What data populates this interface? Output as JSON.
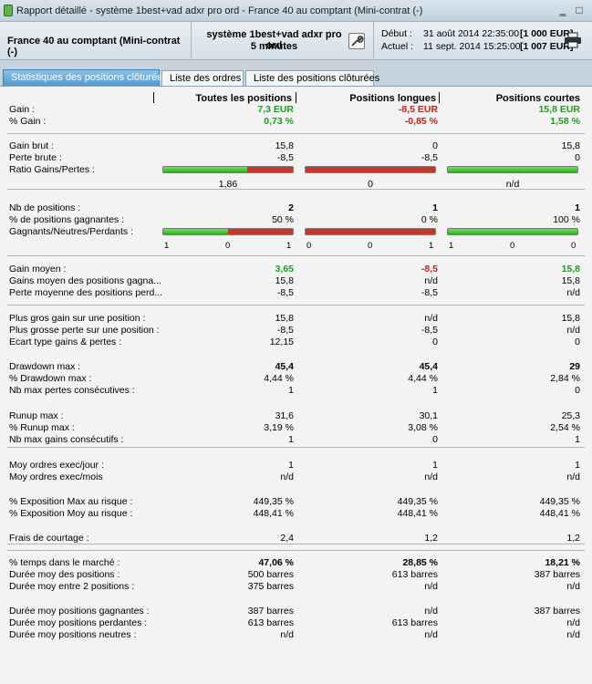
{
  "window": {
    "title": "Rapport détaillé - système 1best+vad adxr pro ord - France 40 au comptant (Mini-contrat  (-)"
  },
  "header": {
    "instrument": "France 40 au comptant (Mini-contrat  (-)",
    "system_line1": "système 1best+vad adxr pro ord",
    "system_line2": "5 minutes",
    "debut_label": "Début :",
    "debut_date": "31 août 2014 22:35:00",
    "debut_capital": "[1 000 EUR]",
    "actuel_label": "Actuel :",
    "actuel_date": "11 sept. 2014 15:25:00",
    "actuel_capital": "[1 007 EUR]"
  },
  "tabs": [
    {
      "label": "Statistiques des positions clôturées",
      "active": true
    },
    {
      "label": "Liste des ordres",
      "active": false
    },
    {
      "label": "Liste des positions clôturées",
      "active": false
    }
  ],
  "columns": [
    "Toutes les positions",
    "Positions longues",
    "Positions courtes"
  ],
  "rows": [
    {
      "label": "Gain :",
      "v": [
        "7,3 EUR",
        "-8,5 EUR",
        "15,8 EUR"
      ]
    },
    {
      "label": "% Gain :",
      "v": [
        "0,73 %",
        "-0,85 %",
        "1,58 %"
      ]
    },
    {
      "label": "Gain brut :",
      "v": [
        "15,8",
        "0",
        "15,8"
      ]
    },
    {
      "label": "Perte brute :",
      "v": [
        "-8,5",
        "-8,5",
        "0"
      ]
    },
    {
      "label": "Ratio Gains/Pertes :",
      "v": [
        "1,86",
        "0",
        "n/d"
      ]
    },
    {
      "label": "Nb de positions :",
      "v": [
        "2",
        "1",
        "1"
      ]
    },
    {
      "label": "% de positions gagnantes :",
      "v": [
        "50 %",
        "0 %",
        "100 %"
      ]
    },
    {
      "label": "Gagnants/Neutres/Perdants :",
      "v": []
    },
    {
      "label": "Gain moyen :",
      "v": [
        "3,65",
        "-8,5",
        "15,8"
      ]
    },
    {
      "label": "Gains moyen des positions gagna...",
      "v": [
        "15,8",
        "n/d",
        "15,8"
      ]
    },
    {
      "label": "Perte moyenne des positions perd...",
      "v": [
        "-8,5",
        "-8,5",
        "n/d"
      ]
    },
    {
      "label": "Plus gros gain sur une position :",
      "v": [
        "15,8",
        "n/d",
        "15,8"
      ]
    },
    {
      "label": "Plus grosse perte sur une position :",
      "v": [
        "-8,5",
        "-8,5",
        "n/d"
      ]
    },
    {
      "label": "Ecart type gains & pertes :",
      "v": [
        "12,15",
        "0",
        "0"
      ]
    },
    {
      "label": "Drawdown max :",
      "v": [
        "45,4",
        "45,4",
        "29"
      ]
    },
    {
      "label": "% Drawdown max :",
      "v": [
        "4,44 %",
        "4,44 %",
        "2,84 %"
      ]
    },
    {
      "label": "Nb max pertes consécutives :",
      "v": [
        "1",
        "1",
        "0"
      ]
    },
    {
      "label": "Runup max :",
      "v": [
        "31,6",
        "30,1",
        "25,3"
      ]
    },
    {
      "label": "% Runup max :",
      "v": [
        "3,19 %",
        "3,08 %",
        "2,54 %"
      ]
    },
    {
      "label": "Nb max gains consécutifs :",
      "v": [
        "1",
        "0",
        "1"
      ]
    },
    {
      "label": "Moy ordres exec/jour :",
      "v": [
        "1",
        "1",
        "1"
      ]
    },
    {
      "label": "Moy ordres exec/mois",
      "v": [
        "n/d",
        "n/d",
        "n/d"
      ]
    },
    {
      "label": "% Exposition Max au risque :",
      "v": [
        "449,35 %",
        "449,35 %",
        "449,35 %"
      ]
    },
    {
      "label": "% Exposition Moy au risque :",
      "v": [
        "448,41 %",
        "448,41 %",
        "448,41 %"
      ]
    },
    {
      "label": "Frais de courtage :",
      "v": [
        "2,4",
        "1,2",
        "1,2"
      ]
    },
    {
      "label": "% temps dans le marché :",
      "v": [
        "47,06 %",
        "28,85 %",
        "18,21 %"
      ]
    },
    {
      "label": "Durée moy des positions :",
      "v": [
        "500 barres",
        "613 barres",
        "387 barres"
      ]
    },
    {
      "label": "Durée moy entre 2 positions :",
      "v": [
        "375 barres",
        "n/d",
        "n/d"
      ]
    },
    {
      "label": "Durée moy positions gagnantes :",
      "v": [
        "387 barres",
        "n/d",
        "387 barres"
      ]
    },
    {
      "label": "Durée moy positions perdantes :",
      "v": [
        "613 barres",
        "613 barres",
        "n/d"
      ]
    },
    {
      "label": "Durée moy positions neutres :",
      "v": [
        "n/d",
        "n/d",
        "n/d"
      ]
    }
  ],
  "ratio_bars": [
    {
      "gain_fraction": 0.65
    },
    {
      "gain_fraction": 0.0
    },
    {
      "gain_fraction": 1.0
    }
  ],
  "gnp_bars": [
    {
      "win_fraction": 0.5,
      "ticks": [
        "1",
        "0",
        "1"
      ]
    },
    {
      "win_fraction": 0.0,
      "ticks": [
        "0",
        "0",
        "1"
      ]
    },
    {
      "win_fraction": 1.0,
      "ticks": [
        "1",
        "0",
        "0"
      ]
    }
  ],
  "colors": {
    "positive": "#1e9e1e",
    "negative": "#c82020",
    "tab_active": "#4f97cf"
  }
}
